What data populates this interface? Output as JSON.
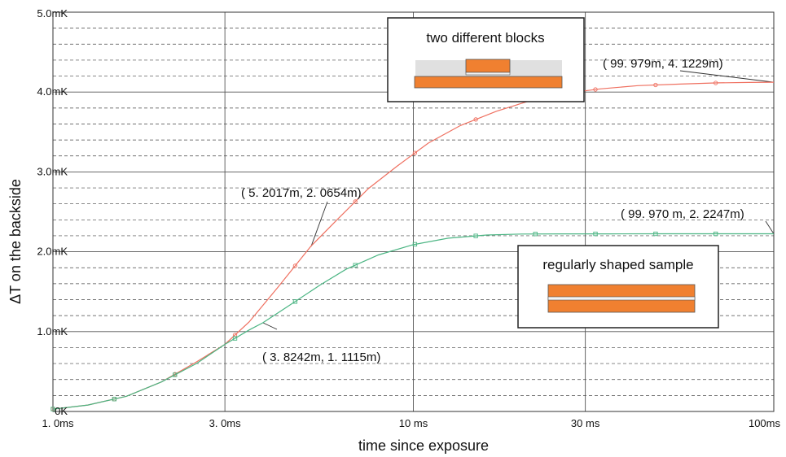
{
  "chart_data": {
    "type": "line",
    "title": "",
    "xlabel": "time since exposure",
    "ylabel": "ΔT on the backside",
    "x_scale": "log",
    "xlim": [
      1.0,
      100.0
    ],
    "ylim": [
      0,
      5.0
    ],
    "x_ticks": [
      {
        "value": 1.0,
        "label": "1. 0ms"
      },
      {
        "value": 3.0,
        "label": "3. 0ms"
      },
      {
        "value": 10.0,
        "label": "10 ms"
      },
      {
        "value": 30.0,
        "label": "30 ms"
      },
      {
        "value": 100.0,
        "label": "100ms"
      }
    ],
    "y_ticks": [
      {
        "value": 0,
        "label": "0K"
      },
      {
        "value": 1.0,
        "label": "1.0mK"
      },
      {
        "value": 2.0,
        "label": "2.0mK"
      },
      {
        "value": 3.0,
        "label": "3.0mK"
      },
      {
        "value": 4.0,
        "label": "4.0mK"
      },
      {
        "value": 5.0,
        "label": "5.0mK"
      }
    ],
    "grid": true,
    "series": [
      {
        "name": "two different blocks",
        "color": "#ef7060",
        "marker": "circle",
        "x": [
          1.0,
          1.25,
          1.6,
          2.0,
          2.5,
          3.0,
          3.5,
          4.2,
          5.2,
          6.2,
          7.5,
          9.0,
          11.0,
          13.5,
          17.0,
          21.0,
          26.0,
          33.0,
          42.0,
          55.0,
          70.0,
          85.0,
          100.0
        ],
        "values": [
          0.03,
          0.08,
          0.19,
          0.37,
          0.62,
          0.84,
          1.12,
          1.55,
          2.07,
          2.42,
          2.79,
          3.07,
          3.36,
          3.58,
          3.76,
          3.89,
          3.98,
          4.04,
          4.08,
          4.1,
          4.115,
          4.12,
          4.123
        ]
      },
      {
        "name": "regularly shaped sample",
        "color": "#4bb583",
        "marker": "square",
        "x": [
          1.0,
          1.25,
          1.6,
          2.0,
          2.5,
          3.0,
          3.5,
          3.82,
          4.5,
          5.5,
          6.5,
          8.0,
          10.0,
          12.5,
          16.0,
          20.0,
          26.0,
          35.0,
          50.0,
          70.0,
          100.0
        ],
        "values": [
          0.03,
          0.08,
          0.19,
          0.37,
          0.6,
          0.84,
          1.02,
          1.11,
          1.32,
          1.58,
          1.78,
          1.96,
          2.09,
          2.17,
          2.21,
          2.222,
          2.224,
          2.2245,
          2.2247,
          2.2247,
          2.2247
        ]
      }
    ],
    "annotations": [
      {
        "label": "( 99. 979m, 4. 1229m)",
        "x": 99.979,
        "y": 4.1229,
        "series": 0
      },
      {
        "label": "( 5. 2017m, 2. 0654m)",
        "x": 5.2017,
        "y": 2.0654,
        "series": 0
      },
      {
        "label": "( 99. 970 m, 2. 2247m)",
        "x": 99.97,
        "y": 2.2247,
        "series": 1
      },
      {
        "label": "( 3. 8242m, 1. 1115m)",
        "x": 3.8242,
        "y": 1.1115,
        "series": 1
      }
    ],
    "insets": [
      {
        "title": "two different blocks",
        "series": 0
      },
      {
        "title": "regularly shaped sample",
        "series": 1
      }
    ]
  }
}
